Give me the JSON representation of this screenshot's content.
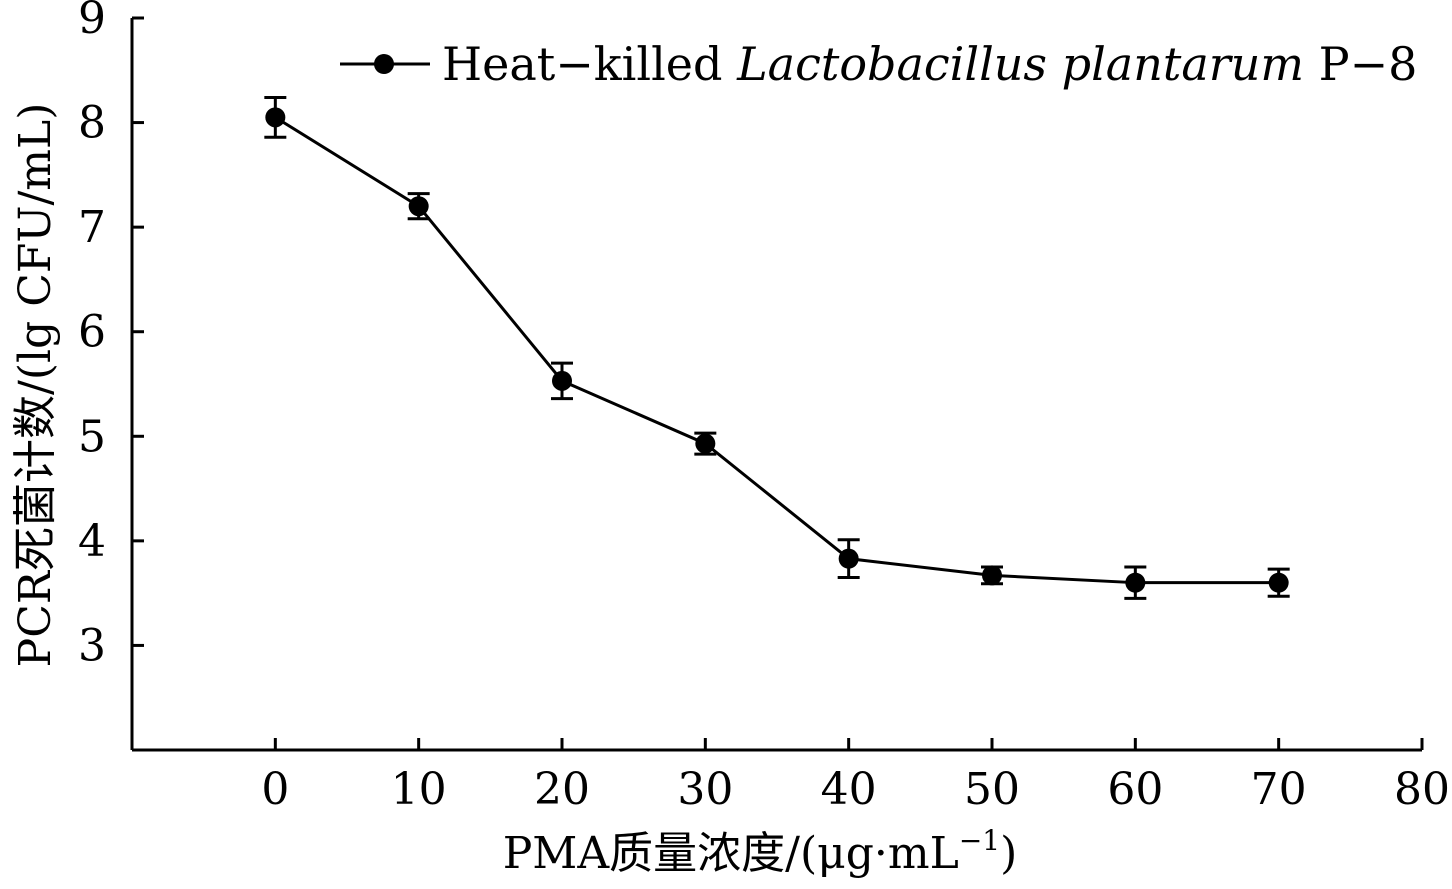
{
  "chart_data": {
    "type": "line",
    "xlabel_parts": [
      "PMA质量浓度/(μg·mL",
      "−1",
      ")"
    ],
    "ylabel": "PCR死菌计数/(lg CFU/mL)",
    "xlim": [
      -10,
      80
    ],
    "ylim": [
      2,
      9
    ],
    "xticks": [
      0,
      10,
      20,
      30,
      40,
      50,
      60,
      70,
      80
    ],
    "yticks": [
      3,
      4,
      5,
      6,
      7,
      8,
      9
    ],
    "legend_position": "top-right",
    "grid": false,
    "series": [
      {
        "name_parts": [
          "Heat−killed ",
          "Lactobacillus plantarum",
          " P−8"
        ],
        "color": "#000000",
        "x": [
          0,
          10,
          20,
          30,
          40,
          50,
          60,
          70
        ],
        "y": [
          8.05,
          7.2,
          5.53,
          4.93,
          3.83,
          3.67,
          3.6,
          3.6
        ],
        "error": [
          0.19,
          0.12,
          0.17,
          0.1,
          0.18,
          0.08,
          0.15,
          0.13
        ]
      }
    ]
  }
}
